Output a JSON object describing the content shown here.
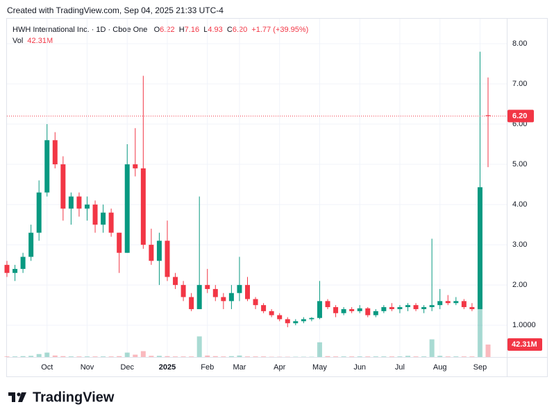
{
  "header": {
    "created": "Created with TradingView.com, Sep 04, 2025 21:33 UTC-4",
    "symbol": "HWH International Inc. · 1D · Cboe One",
    "open_label": "O",
    "open": "6.22",
    "high_label": "H",
    "high": "7.16",
    "low_label": "L",
    "low": "4.93",
    "close_label": "C",
    "close": "6.20",
    "change": "+1.77",
    "change_pct": "(+39.95%)",
    "vol_label": "Vol",
    "vol": "42.31M"
  },
  "logo": "TradingView",
  "chart_data": {
    "type": "candlestick",
    "categories": [
      null,
      null,
      null,
      null,
      null,
      "Oct",
      null,
      null,
      null,
      null,
      "Nov",
      null,
      null,
      null,
      null,
      "Dec",
      null,
      null,
      null,
      null,
      "2025",
      null,
      null,
      null,
      null,
      "Feb",
      null,
      null,
      null,
      "Mar",
      null,
      null,
      null,
      null,
      "Apr",
      null,
      null,
      null,
      null,
      "May",
      null,
      null,
      null,
      null,
      "Jun",
      null,
      null,
      null,
      null,
      "Jul",
      null,
      null,
      null,
      null,
      "Aug",
      null,
      null,
      null,
      null,
      "Sep",
      null
    ],
    "open": [
      2.5,
      2.3,
      2.4,
      2.7,
      3.3,
      4.3,
      5.6,
      5.0,
      3.9,
      4.2,
      3.9,
      4.0,
      3.5,
      3.8,
      3.3,
      2.8,
      5.0,
      4.9,
      3.0,
      2.6,
      3.1,
      2.2,
      2.0,
      1.7,
      1.4,
      2.0,
      1.9,
      1.7,
      1.6,
      1.8,
      2.0,
      1.65,
      1.5,
      1.35,
      1.25,
      1.15,
      1.05,
      1.1,
      1.15,
      1.18,
      1.6,
      1.45,
      1.3,
      1.4,
      1.35,
      1.42,
      1.25,
      1.35,
      1.45,
      1.4,
      1.45,
      1.5,
      1.4,
      1.45,
      1.5,
      1.6,
      1.55,
      1.6,
      1.45,
      1.4,
      6.22
    ],
    "high": [
      2.6,
      2.5,
      2.8,
      3.5,
      4.6,
      6.0,
      5.8,
      5.2,
      4.3,
      4.3,
      4.2,
      4.1,
      4.0,
      3.9,
      3.3,
      5.5,
      5.9,
      7.2,
      3.4,
      3.3,
      3.6,
      2.3,
      2.1,
      1.8,
      4.2,
      2.4,
      2.0,
      1.8,
      2.0,
      2.7,
      2.2,
      1.7,
      1.55,
      1.4,
      1.3,
      1.2,
      1.15,
      1.2,
      1.2,
      2.1,
      1.65,
      1.5,
      1.45,
      1.45,
      1.5,
      1.45,
      1.4,
      1.5,
      1.55,
      1.5,
      1.55,
      1.55,
      1.5,
      3.15,
      1.9,
      1.75,
      1.7,
      1.65,
      1.55,
      7.8,
      7.16
    ],
    "low": [
      2.2,
      2.1,
      2.3,
      2.6,
      3.1,
      4.2,
      4.9,
      3.6,
      3.5,
      3.7,
      3.6,
      3.3,
      3.3,
      3.2,
      2.3,
      2.8,
      4.7,
      2.9,
      2.5,
      2.0,
      2.1,
      1.9,
      1.6,
      1.35,
      1.4,
      1.8,
      1.6,
      1.4,
      1.4,
      1.6,
      1.6,
      1.4,
      1.3,
      1.2,
      1.1,
      0.95,
      1.0,
      1.05,
      1.1,
      1.15,
      1.4,
      1.2,
      1.25,
      1.3,
      1.3,
      1.2,
      1.2,
      1.3,
      1.35,
      1.3,
      1.35,
      1.35,
      1.3,
      1.35,
      1.4,
      1.5,
      1.5,
      1.4,
      1.35,
      1.4,
      4.93
    ],
    "close": [
      2.3,
      2.4,
      2.7,
      3.3,
      4.3,
      5.6,
      5.0,
      3.9,
      4.2,
      3.9,
      4.0,
      3.5,
      3.8,
      3.3,
      2.8,
      5.0,
      4.9,
      3.0,
      2.6,
      3.1,
      2.2,
      2.0,
      1.7,
      1.4,
      2.0,
      1.9,
      1.7,
      1.6,
      1.8,
      2.0,
      1.65,
      1.5,
      1.35,
      1.25,
      1.15,
      1.05,
      1.1,
      1.15,
      1.18,
      1.6,
      1.45,
      1.3,
      1.4,
      1.35,
      1.42,
      1.25,
      1.35,
      1.45,
      1.4,
      1.45,
      1.5,
      1.4,
      1.45,
      1.5,
      1.6,
      1.55,
      1.6,
      1.45,
      1.4,
      4.43,
      6.2
    ],
    "volume": [
      2,
      2,
      3,
      4,
      10,
      15,
      5,
      3,
      2,
      2,
      2,
      2,
      2,
      2,
      3,
      15,
      8,
      20,
      4,
      4,
      3,
      2,
      2,
      2,
      70,
      5,
      3,
      2,
      3,
      5,
      2,
      2,
      2,
      1,
      1,
      1,
      1,
      1,
      1,
      50,
      3,
      2,
      2,
      2,
      2,
      2,
      2,
      2,
      2,
      2,
      4,
      2,
      2,
      60,
      4,
      2,
      2,
      2,
      2,
      290,
      42.31
    ],
    "up_color": "#089981",
    "down_color": "#f23645",
    "ylim": [
      0.21,
      8.62
    ],
    "yticks": [
      {
        "value": 1,
        "label": "1.0000"
      },
      {
        "value": 2,
        "label": "2.00"
      },
      {
        "value": 3,
        "label": "3.00"
      },
      {
        "value": 4,
        "label": "4.00"
      },
      {
        "value": 5,
        "label": "5.00"
      },
      {
        "value": 6,
        "label": "6.00"
      },
      {
        "value": 7,
        "label": "7.00"
      },
      {
        "value": 8,
        "label": "8.00"
      }
    ],
    "y2lim": [
      0,
      1150
    ],
    "last_price": {
      "value": 6.2,
      "label": "6.20"
    },
    "last_volume": {
      "value": 42.31,
      "label": "42.31M"
    },
    "grid": true
  }
}
